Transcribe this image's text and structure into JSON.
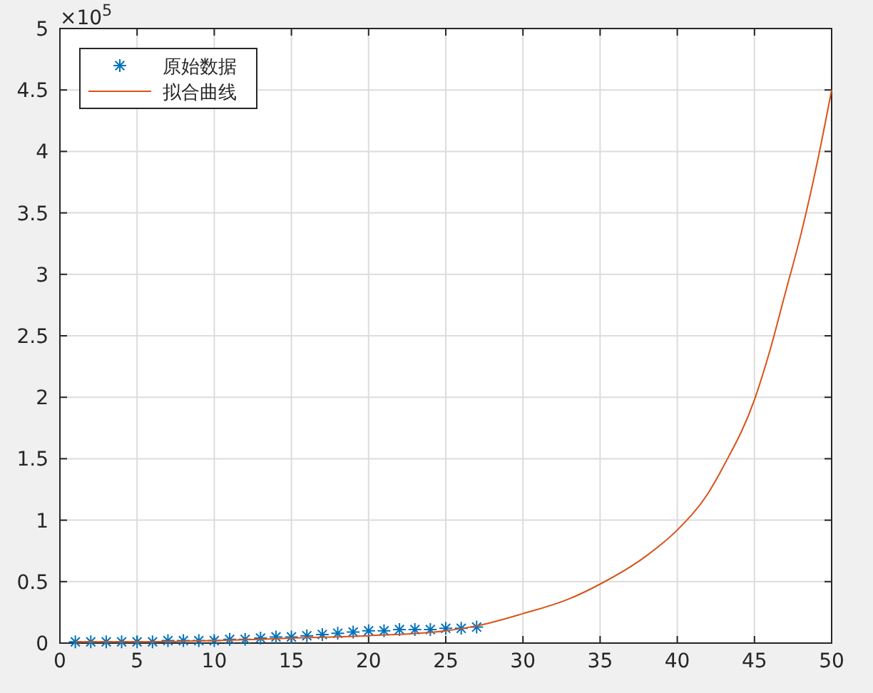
{
  "chart_data": {
    "type": "scatter",
    "annotations": [
      "×10$^{5}$"
    ],
    "xlim": [
      0,
      50
    ],
    "xticks": [
      0,
      5,
      10,
      15,
      20,
      25,
      30,
      35,
      40,
      45,
      50
    ],
    "ylim": [
      0,
      5
    ],
    "yticks": [
      0,
      0.5,
      1,
      1.5,
      2,
      2.5,
      3,
      3.5,
      4,
      4.5,
      5
    ],
    "grid": true,
    "legend": "top left",
    "series": [
      {
        "name": "原始数据",
        "marker": "cross",
        "color": "#0072bd",
        "x": [
          1,
          2,
          3,
          4,
          5,
          6,
          7,
          8,
          9,
          10,
          11,
          12,
          13,
          14,
          15,
          16,
          17,
          18,
          19,
          20,
          21,
          22,
          23,
          24,
          25,
          26,
          27
        ],
        "values": [
          0.01,
          0.01,
          0.01,
          0.01,
          0.01,
          0.01,
          0.02,
          0.02,
          0.02,
          0.02,
          0.03,
          0.03,
          0.04,
          0.05,
          0.05,
          0.06,
          0.07,
          0.08,
          0.09,
          0.1,
          0.1,
          0.11,
          0.11,
          0.11,
          0.12,
          0.12,
          0.13
        ]
      },
      {
        "name": "拟合曲线",
        "type": "line",
        "marker": "none",
        "color": "#d95319",
        "x": [
          1,
          5,
          10,
          15,
          20,
          25,
          27,
          30,
          33,
          35,
          38,
          40,
          42,
          43,
          45,
          46,
          47,
          48,
          49,
          50
        ],
        "values": [
          0.01,
          0.01,
          0.02,
          0.04,
          0.06,
          0.1,
          0.14,
          0.24,
          0.36,
          0.48,
          0.71,
          0.92,
          1.22,
          1.44,
          1.98,
          2.38,
          2.85,
          3.32,
          3.87,
          4.5
        ]
      }
    ]
  }
}
